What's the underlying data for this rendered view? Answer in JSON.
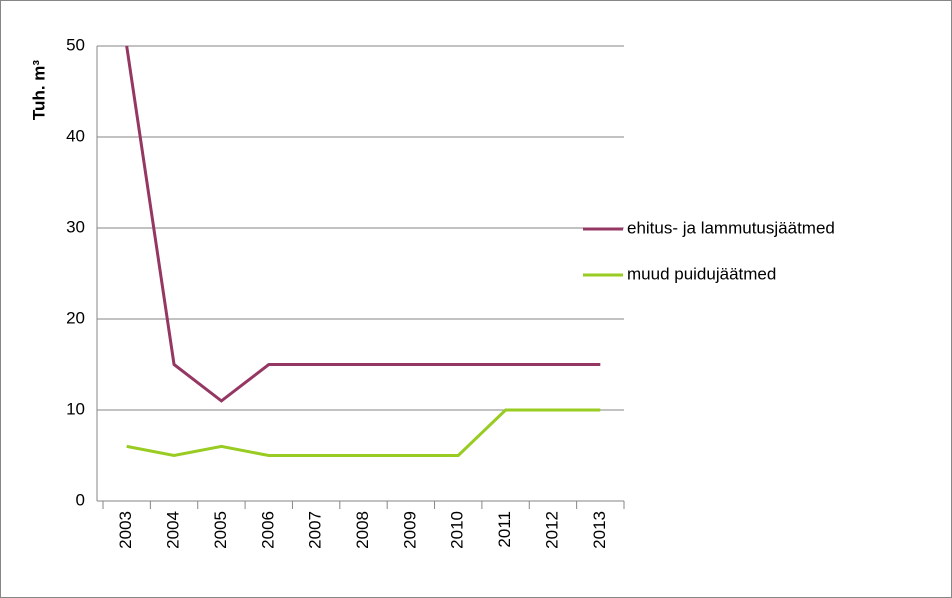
{
  "chart_data": {
    "type": "line",
    "y_label": "Tuh. m³",
    "categories": [
      "2003",
      "2004",
      "2005",
      "2006",
      "2007",
      "2008",
      "2009",
      "2010",
      "2011",
      "2012",
      "2013"
    ],
    "series": [
      {
        "name": "ehitus- ja lammutusjäätmed",
        "color": "#953763",
        "values": [
          50,
          15,
          11,
          15,
          15,
          15,
          15,
          15,
          15,
          15,
          15
        ]
      },
      {
        "name": "muud puidujäätmed",
        "color": "#99cc22",
        "values": [
          6,
          5,
          6,
          5,
          5,
          5,
          5,
          5,
          10,
          10,
          10
        ]
      }
    ],
    "ylim": [
      0,
      50
    ],
    "yticks": [
      0,
      10,
      20,
      30,
      40,
      50
    ],
    "grid": true,
    "legend": "right"
  }
}
